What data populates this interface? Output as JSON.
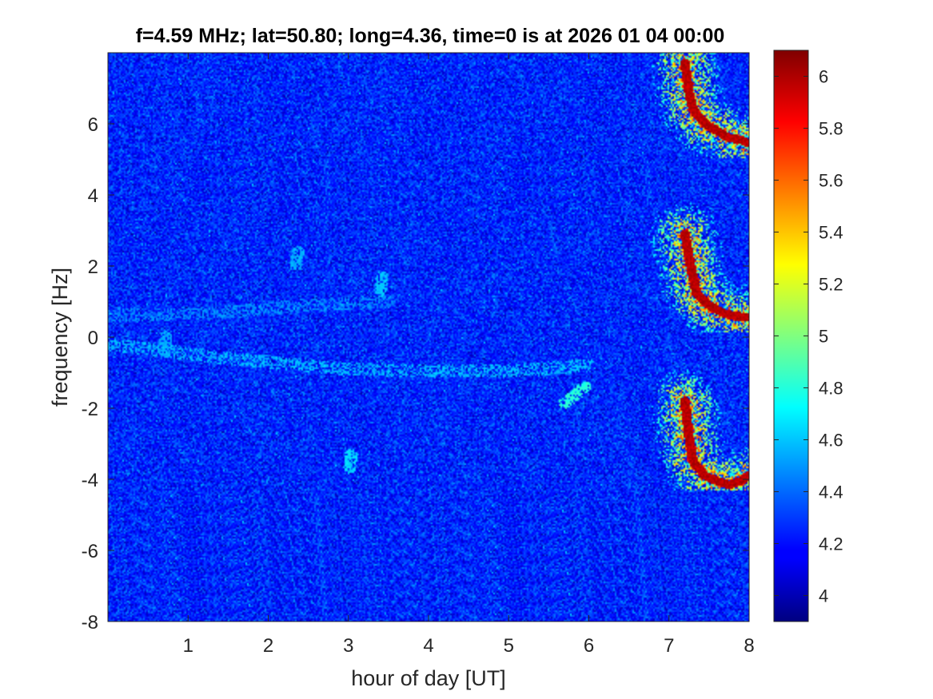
{
  "chart_data": {
    "type": "heatmap",
    "title": "f=4.59 MHz;  lat=50.80; long=4.36, time=0 is at 2026 01 04 00:00",
    "xlabel": "hour of day [UT]",
    "ylabel": "frequency [Hz]",
    "xlim": [
      0,
      8
    ],
    "ylim": [
      -8,
      8
    ],
    "xticks": [
      1,
      2,
      3,
      4,
      5,
      6,
      7,
      8
    ],
    "xtick_labels": [
      "1",
      "2",
      "3",
      "4",
      "5",
      "6",
      "7",
      "8"
    ],
    "yticks": [
      -8,
      -6,
      -4,
      -2,
      0,
      2,
      4,
      6
    ],
    "ytick_labels": [
      "-8",
      "-6",
      "-4",
      "-2",
      "0",
      "2",
      "4",
      "6"
    ],
    "colorbar": {
      "colormap": "jet",
      "clim": [
        3.9,
        6.1
      ],
      "ticks": [
        4,
        4.2,
        4.4,
        4.6,
        4.8,
        5,
        5.2,
        5.4,
        5.6,
        5.8,
        6
      ],
      "tick_labels": [
        "4",
        "4.2",
        "4.4",
        "4.6",
        "4.8",
        "5",
        "5.2",
        "5.4",
        "5.6",
        "5.8",
        "6"
      ],
      "location": "right"
    },
    "background_level": 4.25,
    "grid": false,
    "features": [
      {
        "kind": "faint-horizontal-trace",
        "points": [
          [
            0,
            -0.2
          ],
          [
            1.5,
            -0.6
          ],
          [
            3,
            -0.9
          ],
          [
            4,
            -0.95
          ],
          [
            5,
            -0.95
          ],
          [
            6,
            -0.8
          ]
        ],
        "level": 4.5
      },
      {
        "kind": "faint-horizontal-trace",
        "points": [
          [
            0,
            0.6
          ],
          [
            1.5,
            0.7
          ],
          [
            2.5,
            0.9
          ],
          [
            3.5,
            1.0
          ]
        ],
        "level": 4.4
      },
      {
        "kind": "short-streak",
        "points": [
          [
            5.7,
            -1.85
          ],
          [
            5.82,
            -1.65
          ],
          [
            5.95,
            -1.4
          ]
        ],
        "level": 4.75
      },
      {
        "kind": "short-streak",
        "points": [
          [
            3.02,
            -3.7
          ],
          [
            3.03,
            -3.3
          ]
        ],
        "level": 4.6
      },
      {
        "kind": "short-streak",
        "points": [
          [
            3.4,
            1.3
          ],
          [
            3.42,
            1.7
          ]
        ],
        "level": 4.55
      },
      {
        "kind": "short-streak",
        "points": [
          [
            2.35,
            2.0
          ],
          [
            2.37,
            2.4
          ]
        ],
        "level": 4.5
      },
      {
        "kind": "short-streak",
        "points": [
          [
            0.7,
            -0.4
          ],
          [
            0.72,
            0.0
          ]
        ],
        "level": 4.5
      },
      {
        "kind": "echo-trace",
        "points": [
          [
            7.2,
            7.7
          ],
          [
            7.25,
            6.9
          ],
          [
            7.3,
            6.4
          ],
          [
            7.45,
            6.0
          ],
          [
            7.6,
            5.8
          ],
          [
            7.75,
            5.6
          ],
          [
            7.9,
            5.55
          ],
          [
            8.0,
            5.45
          ]
        ],
        "level": 6.05
      },
      {
        "kind": "echo-trace",
        "points": [
          [
            7.2,
            2.9
          ],
          [
            7.28,
            1.9
          ],
          [
            7.35,
            1.2
          ],
          [
            7.5,
            0.9
          ],
          [
            7.65,
            0.7
          ],
          [
            7.8,
            0.6
          ],
          [
            8.0,
            0.55
          ]
        ],
        "level": 6.05
      },
      {
        "kind": "echo-trace",
        "points": [
          [
            7.2,
            -1.8
          ],
          [
            7.25,
            -2.8
          ],
          [
            7.3,
            -3.5
          ],
          [
            7.45,
            -3.9
          ],
          [
            7.6,
            -4.05
          ],
          [
            7.75,
            -4.15
          ],
          [
            7.9,
            -4.05
          ],
          [
            8.0,
            -3.9
          ]
        ],
        "level": 6.05
      }
    ]
  }
}
